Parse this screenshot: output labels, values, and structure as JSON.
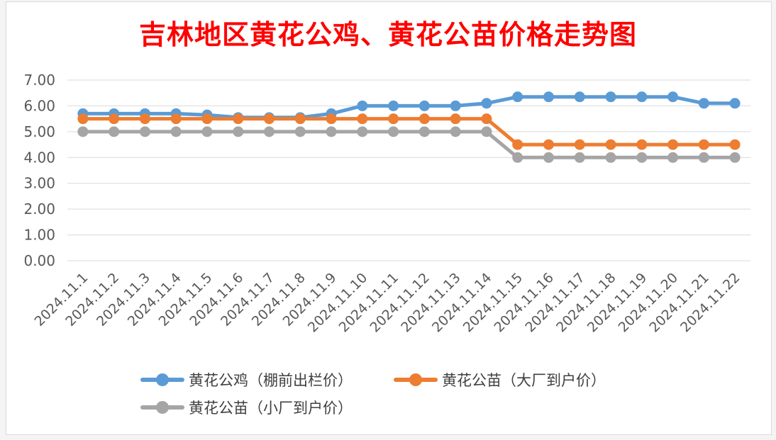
{
  "chart_data": {
    "type": "line",
    "title": "吉林地区黄花公鸡、黄花公苗价格走势图",
    "xlabel": "",
    "ylabel": "",
    "ylim": [
      0,
      7
    ],
    "yticks": [
      "0.00",
      "1.00",
      "2.00",
      "3.00",
      "4.00",
      "5.00",
      "6.00",
      "7.00"
    ],
    "grid": true,
    "legend_position": "bottom",
    "categories": [
      "2024.11.1",
      "2024.11.2",
      "2024.11.3",
      "2024.11.4",
      "2024.11.5",
      "2024.11.6",
      "2024.11.7",
      "2024.11.8",
      "2024.11.9",
      "2024.11.10",
      "2024.11.11",
      "2024.11.12",
      "2024.11.13",
      "2024.11.14",
      "2024.11.15",
      "2024.11.16",
      "2024.11.17",
      "2024.11.18",
      "2024.11.19",
      "2024.11.20",
      "2024.11.21",
      "2024.11.22"
    ],
    "series": [
      {
        "name": "黄花公鸡（棚前出栏价）",
        "color": "#5b9bd5",
        "values": [
          5.7,
          5.7,
          5.7,
          5.7,
          5.65,
          5.55,
          5.55,
          5.55,
          5.7,
          6.0,
          6.0,
          6.0,
          6.0,
          6.1,
          6.35,
          6.35,
          6.35,
          6.35,
          6.35,
          6.35,
          6.1,
          6.1
        ]
      },
      {
        "name": "黄花公苗（大厂到户价）",
        "color": "#ed7d31",
        "values": [
          5.5,
          5.5,
          5.5,
          5.5,
          5.5,
          5.5,
          5.5,
          5.5,
          5.5,
          5.5,
          5.5,
          5.5,
          5.5,
          5.5,
          4.5,
          4.5,
          4.5,
          4.5,
          4.5,
          4.5,
          4.5,
          4.5
        ]
      },
      {
        "name": "黄花公苗（小厂到户价）",
        "color": "#a5a5a5",
        "values": [
          5.0,
          5.0,
          5.0,
          5.0,
          5.0,
          5.0,
          5.0,
          5.0,
          5.0,
          5.0,
          5.0,
          5.0,
          5.0,
          5.0,
          4.0,
          4.0,
          4.0,
          4.0,
          4.0,
          4.0,
          4.0,
          4.0
        ]
      }
    ]
  }
}
